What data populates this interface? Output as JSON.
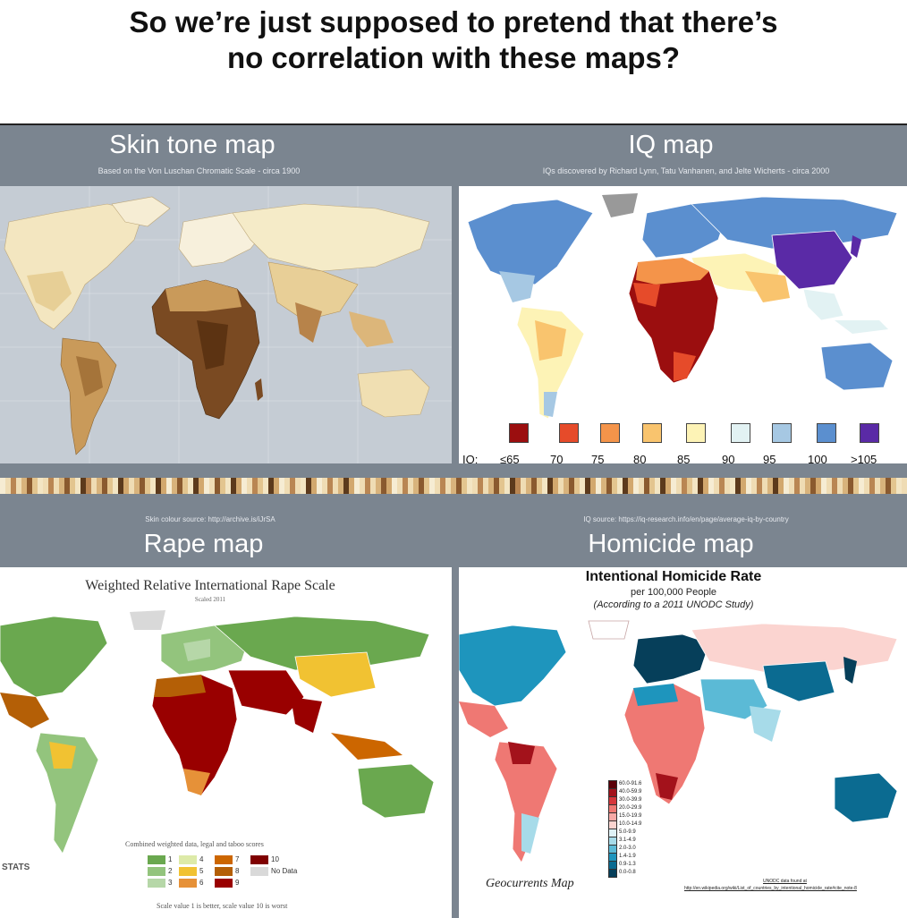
{
  "caption": {
    "line1": "So we’re just supposed to pretend that there’s",
    "line2": "no correlation with these maps?"
  },
  "skin_map": {
    "title": "Skin tone map",
    "subtitle": "Based on the Von Luschan Chromatic Scale - circa 1900",
    "source": "Skin colour source: http://archive.is/iJrSA"
  },
  "iq_map": {
    "title": "IQ map",
    "subtitle": "IQs discovered by Richard Lynn, Tatu Vanhanen, and Jelte Wicherts - circa 2000",
    "legend_prefix": "IQ:",
    "legend": [
      {
        "label": "≤65",
        "color": "#9b0e0f"
      },
      {
        "label": "70",
        "color": "#e64b2a"
      },
      {
        "label": "75",
        "color": "#f4944a"
      },
      {
        "label": "80",
        "color": "#f9c46e"
      },
      {
        "label": "85",
        "color": "#fdf3b6"
      },
      {
        "label": "90",
        "color": "#e2f2f3"
      },
      {
        "label": "95",
        "color": "#a6c8e3"
      },
      {
        "label": "100",
        "color": "#5b8fcf"
      },
      {
        "label": ">105",
        "color": "#5a2aa6"
      }
    ],
    "source": "IQ source: https://iq-research.info/en/page/average-iq-by-country"
  },
  "rape_map": {
    "title": "Rape map",
    "map_title": "Weighted Relative International Rape Scale",
    "map_sub": "Scaled 2011",
    "note": "Combined weighted data, legal and taboo scores",
    "scale_note": "Scale value 1 is better, scale value 10 is worst",
    "key": [
      {
        "label": "1",
        "color": "#6aa84f"
      },
      {
        "label": "2",
        "color": "#93c47d"
      },
      {
        "label": "3",
        "color": "#b6d7a8"
      },
      {
        "label": "4",
        "color": "#ddeaa8"
      },
      {
        "label": "5",
        "color": "#f1c232"
      },
      {
        "label": "6",
        "color": "#e69138"
      },
      {
        "label": "7",
        "color": "#cc6600"
      },
      {
        "label": "8",
        "color": "#b45f06"
      },
      {
        "label": "9",
        "color": "#990000"
      },
      {
        "label": "10",
        "color": "#7f0000"
      },
      {
        "label": "No Data",
        "color": "#d9d9d9"
      }
    ],
    "stats_label": "STATS"
  },
  "homicide_map": {
    "title": "Homicide map",
    "map_title": "Intentional Homicide Rate",
    "per": "per 100,000 People",
    "according": "(According to a 2011 UNODC Study)",
    "credit": "Geocurrents Map",
    "data_link1": "UNODC data found at",
    "data_link2": "http://en.wikipedia.org/wiki/List_of_countries_by_intentional_homicide_rate#cite_note-8",
    "legend": [
      {
        "label": "60.0-91.6",
        "color": "#5a0008"
      },
      {
        "label": "40.0-59.9",
        "color": "#a3121b"
      },
      {
        "label": "30.0-39.9",
        "color": "#d6363b"
      },
      {
        "label": "20.0-29.9",
        "color": "#ef7873"
      },
      {
        "label": "15.0-19.9",
        "color": "#f7a9a6"
      },
      {
        "label": "10.0-14.9",
        "color": "#fbd4d0"
      },
      {
        "label": "5.0-9.9",
        "color": "#dff1f6"
      },
      {
        "label": "3.1-4.9",
        "color": "#a7dbe9"
      },
      {
        "label": "2.0-3.0",
        "color": "#5bbad6"
      },
      {
        "label": "1.4-1.9",
        "color": "#1e95bd"
      },
      {
        "label": "0.9-1.3",
        "color": "#0b6b91"
      },
      {
        "label": "0.0-0.8",
        "color": "#063f5a"
      }
    ]
  }
}
